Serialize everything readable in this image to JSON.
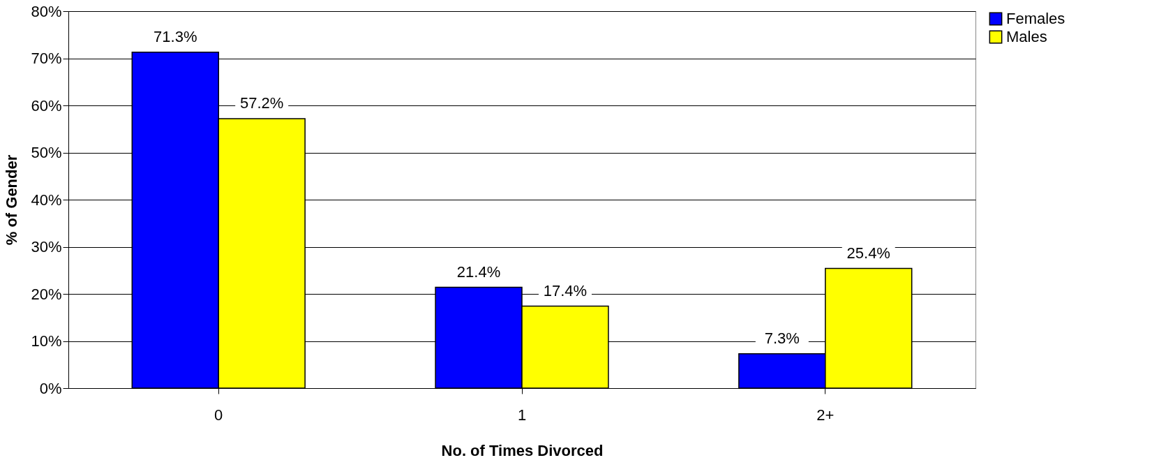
{
  "chart_data": {
    "type": "bar",
    "xlabel": "No. of Times Divorced",
    "ylabel": "% of Gender",
    "categories": [
      "0",
      "1",
      "2+"
    ],
    "series": [
      {
        "name": "Females",
        "color": "#0000ff",
        "values": [
          71.3,
          21.4,
          7.3
        ],
        "value_labels": [
          "71.3%",
          "21.4%",
          "7.3%"
        ]
      },
      {
        "name": "Males",
        "color": "#ffff00",
        "values": [
          57.2,
          17.4,
          25.4
        ],
        "value_labels": [
          "57.2%",
          "17.4%",
          "25.4%"
        ]
      }
    ],
    "ylim": [
      0,
      80
    ],
    "yticks": [
      {
        "value": 0,
        "label": "0%"
      },
      {
        "value": 10,
        "label": "10%"
      },
      {
        "value": 20,
        "label": "20%"
      },
      {
        "value": 30,
        "label": "30%"
      },
      {
        "value": 40,
        "label": "40%"
      },
      {
        "value": 50,
        "label": "50%"
      },
      {
        "value": 60,
        "label": "60%"
      },
      {
        "value": 70,
        "label": "70%"
      },
      {
        "value": 80,
        "label": "80%"
      }
    ],
    "grid": "y",
    "legend": "right"
  }
}
